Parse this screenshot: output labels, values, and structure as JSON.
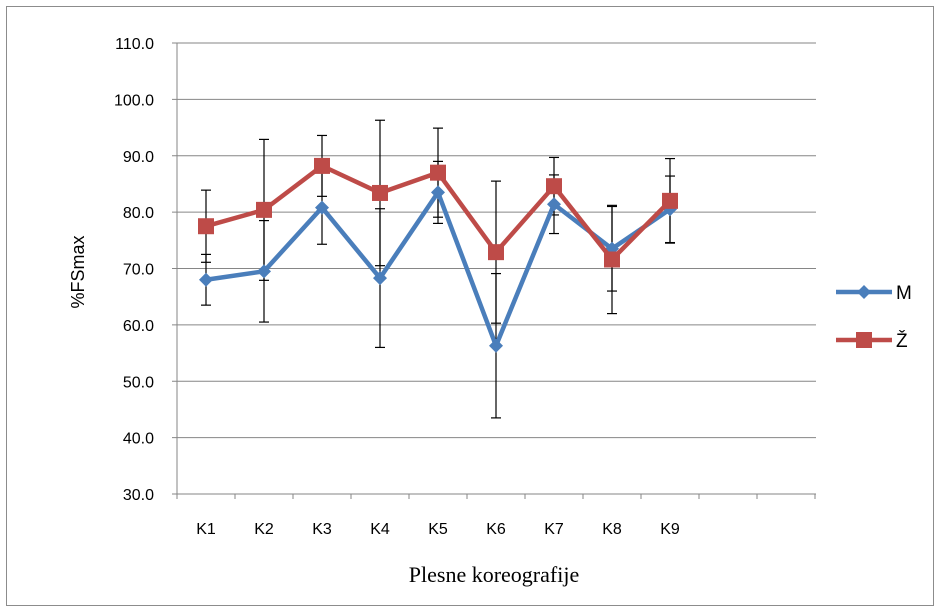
{
  "chart_data": {
    "type": "line",
    "title": "",
    "xlabel": "Plesne koreografije",
    "ylabel": "%FSmax",
    "categories": [
      "K1",
      "K2",
      "K3",
      "K4",
      "K5",
      "K6",
      "K7",
      "K8",
      "K9"
    ],
    "ylim": [
      30,
      110
    ],
    "yticks": [
      "30.0",
      "40.0",
      "50.0",
      "60.0",
      "70.0",
      "80.0",
      "90.0",
      "100.0",
      "110.0"
    ],
    "grid": true,
    "legend_position": "right",
    "series": [
      {
        "name": "M",
        "color": "#4a7ebb",
        "marker": "diamond",
        "values": [
          68.0,
          69.5,
          80.8,
          68.3,
          83.5,
          56.3,
          81.4,
          73.5,
          80.5
        ],
        "error": [
          4.5,
          9.0,
          6.5,
          12.3,
          5.5,
          12.8,
          5.2,
          7.5,
          5.9
        ]
      },
      {
        "name": "Ž",
        "color": "#be4b48",
        "marker": "square",
        "values": [
          77.5,
          80.4,
          88.2,
          83.4,
          87.0,
          72.9,
          84.6,
          71.6,
          82.0
        ],
        "error": [
          6.4,
          12.5,
          5.4,
          12.9,
          7.9,
          12.6,
          5.1,
          9.6,
          7.5
        ]
      }
    ]
  }
}
